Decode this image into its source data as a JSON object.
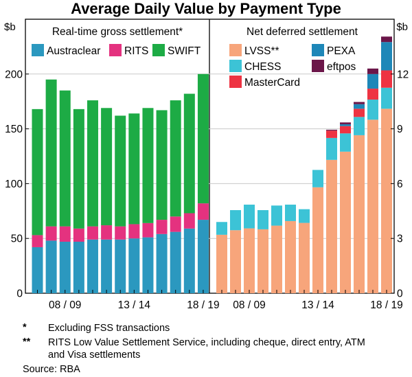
{
  "chart_data": {
    "type": "bar",
    "stacked": true,
    "title": "Average Daily Value by Payment Type",
    "axis_unit": "$b",
    "panels": [
      {
        "id": "rtgs",
        "title": "Real-time gross settlement*",
        "ylim": [
          0,
          250
        ],
        "yticks": [
          0,
          50,
          100,
          150,
          200
        ],
        "x_tick_labels": [
          "08 / 09",
          "13 / 14",
          "18 / 19"
        ],
        "categories": [
          "2006/07",
          "2007/08",
          "2008/09",
          "2009/10",
          "2010/11",
          "2011/12",
          "2012/13",
          "2013/14",
          "2014/15",
          "2015/16",
          "2016/17",
          "2017/18",
          "2018/19"
        ],
        "series": [
          {
            "name": "Austraclear",
            "color": "#2b98bf",
            "values": [
              42,
              48,
              47,
              47,
              49,
              49,
              49,
              50,
              51,
              54,
              56,
              59,
              67
            ]
          },
          {
            "name": "RITS",
            "color": "#e4327f",
            "values": [
              11,
              13,
              14,
              12,
              12,
              13,
              12,
              13,
              13,
              13,
              14,
              14,
              15
            ]
          },
          {
            "name": "SWIFT",
            "color": "#1dab45",
            "values": [
              115,
              134,
              124,
              109,
              115,
              107,
              101,
              101,
              105,
              100,
              106,
              109,
              118
            ]
          }
        ]
      },
      {
        "id": "dns",
        "title": "Net deferred settlement",
        "ylim": [
          0,
          15
        ],
        "yticks": [
          0,
          3,
          6,
          9,
          12
        ],
        "x_tick_labels": [
          "08 / 09",
          "13 / 14",
          "18 / 19"
        ],
        "categories": [
          "2006/07",
          "2007/08",
          "2008/09",
          "2009/10",
          "2010/11",
          "2011/12",
          "2012/13",
          "2013/14",
          "2014/15",
          "2015/16",
          "2016/17",
          "2017/18",
          "2018/19"
        ],
        "series": [
          {
            "name": "LVSS**",
            "color": "#f7a57b",
            "values": [
              3.2,
              3.45,
              3.55,
              3.5,
              3.7,
              3.95,
              3.85,
              5.8,
              7.3,
              7.75,
              8.65,
              9.5,
              10.1
            ]
          },
          {
            "name": "CHESS",
            "color": "#3cc3d6",
            "values": [
              0.7,
              1.1,
              1.3,
              1.05,
              1.1,
              0.9,
              0.75,
              0.95,
              1.2,
              1.0,
              1.0,
              1.1,
              1.15
            ]
          },
          {
            "name": "MasterCard",
            "color": "#ee3342",
            "values": [
              0,
              0,
              0,
              0,
              0,
              0,
              0,
              0,
              0.4,
              0.4,
              0.45,
              0.6,
              0.95
            ]
          },
          {
            "name": "PEXA",
            "color": "#1e87b8",
            "values": [
              0,
              0,
              0,
              0,
              0,
              0,
              0,
              0,
              0,
              0.1,
              0.25,
              0.8,
              1.55
            ]
          },
          {
            "name": "eftpos",
            "color": "#6b1649",
            "values": [
              0,
              0,
              0,
              0,
              0,
              0,
              0,
              0,
              0.05,
              0.1,
              0.12,
              0.3,
              0.3
            ]
          }
        ]
      }
    ]
  },
  "footnotes": [
    {
      "mark": "*",
      "text": "Excluding FSS transactions"
    },
    {
      "mark": "**",
      "text": "RITS Low Value Settlement Service, including cheque, direct entry, ATM and Visa settlements"
    }
  ],
  "source": "Source:  RBA"
}
